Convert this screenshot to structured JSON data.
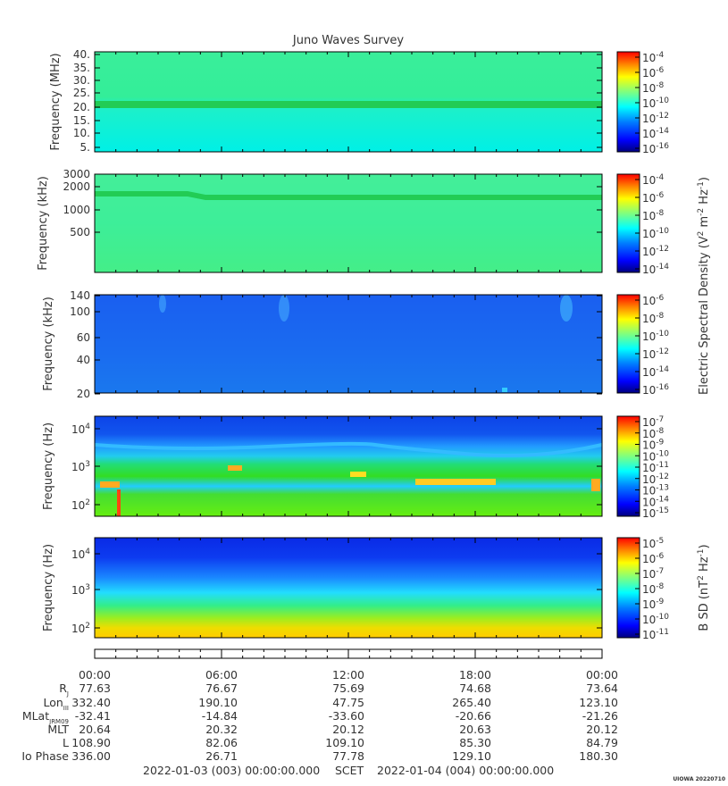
{
  "chart_data": {
    "type": "heatmap",
    "title": "Juno Waves Survey",
    "x_ticks": [
      "00:00",
      "06:00",
      "12:00",
      "18:00",
      "00:00"
    ],
    "panels": [
      {
        "ylabel": "Frequency (MHz)",
        "yticks": [
          "40.",
          "35.",
          "30.",
          "25.",
          "20.",
          "15.",
          "10.",
          "5."
        ],
        "yscale": "linear",
        "colorbar_ticks": [
          [
            "10",
            "-4"
          ],
          [
            "10",
            "-6"
          ],
          [
            "10",
            "-8"
          ],
          [
            "10",
            "-10"
          ],
          [
            "10",
            "-12"
          ],
          [
            "10",
            "-14"
          ],
          [
            "10",
            "-16"
          ]
        ],
        "features": [
          "band near 20 MHz"
        ]
      },
      {
        "ylabel": "Frequency (kHz)",
        "yticks": [
          "3000",
          "2000",
          "1000",
          "500"
        ],
        "yscale": "log",
        "colorbar_ticks": [
          [
            "10",
            "-4"
          ],
          [
            "10",
            "-6"
          ],
          [
            "10",
            "-8"
          ],
          [
            "10",
            "-10"
          ],
          [
            "10",
            "-12"
          ],
          [
            "10",
            "-14"
          ]
        ],
        "features": [
          "band near 1600 kHz"
        ]
      },
      {
        "ylabel": "Frequency (kHz)",
        "yticks": [
          "140",
          "100",
          "60",
          "40",
          "20"
        ],
        "yscale": "linear",
        "colorbar_ticks": [
          [
            "10",
            "-6"
          ],
          [
            "10",
            "-8"
          ],
          [
            "10",
            "-10"
          ],
          [
            "10",
            "-12"
          ],
          [
            "10",
            "-14"
          ],
          [
            "10",
            "-16"
          ]
        ]
      },
      {
        "ylabel": "Frequency (Hz)",
        "yticks": [
          [
            "10",
            "4"
          ],
          [
            "10",
            "3"
          ],
          [
            "10",
            "2"
          ]
        ],
        "yscale": "log",
        "colorbar_ticks": [
          [
            "10",
            "-7"
          ],
          [
            "10",
            "-8"
          ],
          [
            "10",
            "-9"
          ],
          [
            "10",
            "-10"
          ],
          [
            "10",
            "-11"
          ],
          [
            "10",
            "-12"
          ],
          [
            "10",
            "-13"
          ],
          [
            "10",
            "-14"
          ],
          [
            "10",
            "-15"
          ]
        ]
      },
      {
        "ylabel": "Frequency (Hz)",
        "yticks": [
          [
            "10",
            "4"
          ],
          [
            "10",
            "3"
          ],
          [
            "10",
            "2"
          ]
        ],
        "yscale": "log",
        "colorbar_ticks": [
          [
            "10",
            "-5"
          ],
          [
            "10",
            "-6"
          ],
          [
            "10",
            "-7"
          ],
          [
            "10",
            "-8"
          ],
          [
            "10",
            "-9"
          ],
          [
            "10",
            "-10"
          ],
          [
            "10",
            "-11"
          ]
        ]
      }
    ],
    "colorbar_labels": {
      "electric": {
        "pre": "Electric Spectral Density (V",
        "mid1": " m",
        "mid2": " Hz",
        "post": ")",
        "exp1": "2",
        "exp2": "-2",
        "exp3": "-1"
      },
      "magnetic": {
        "pre": "B SD (nT",
        "mid1": " Hz",
        "post": ")",
        "exp1": "2",
        "exp2": "-1"
      }
    },
    "ephemeris": {
      "labels": [
        {
          "main": "R",
          "sub": "J"
        },
        {
          "main": "Lon",
          "sub": "III"
        },
        {
          "main": "MLat",
          "sub": "JRM09"
        },
        {
          "main": "MLT",
          "sub": ""
        },
        {
          "main": "L",
          "sub": ""
        },
        {
          "main": "Io Phase",
          "sub": ""
        }
      ],
      "rows": [
        [
          "77.63",
          "76.67",
          "75.69",
          "74.68",
          "73.64"
        ],
        [
          "332.40",
          "190.10",
          "47.75",
          "265.40",
          "123.10"
        ],
        [
          "-32.41",
          "-14.84",
          "-33.60",
          "-20.66",
          "-21.26"
        ],
        [
          "20.64",
          "20.32",
          "20.12",
          "20.63",
          "20.12"
        ],
        [
          "108.90",
          "82.06",
          "109.10",
          "85.30",
          "84.79"
        ],
        [
          "336.00",
          "26.71",
          "77.78",
          "129.10",
          "180.30"
        ]
      ]
    },
    "time_start": "2022-01-03 (003) 00:00:00.000",
    "time_label": "SCET",
    "time_end": "2022-01-04 (004) 00:00:00.000",
    "credit": "UIOWA 20220710"
  },
  "colors": {
    "jet": [
      "#00007f",
      "#0000ff",
      "#007fff",
      "#00ffff",
      "#7fff7f",
      "#ffff00",
      "#ff7f00",
      "#ff0000"
    ],
    "panel1_bg": "#33ee99",
    "panel1_band": "#22cc55",
    "panel1_low": "#00f0e0",
    "panel2_bg": "#3dee99",
    "panel2_band": "#22cc55",
    "panel3_bg": "#1a6cf0",
    "panel4_top": "#1155ee",
    "panel4_mid": "#22ccff",
    "panel4_low": "#22dd33",
    "panel5_top": "#0a2ae6",
    "panel5_mid": "#22ddff",
    "panel5_low": "#eedd00"
  }
}
